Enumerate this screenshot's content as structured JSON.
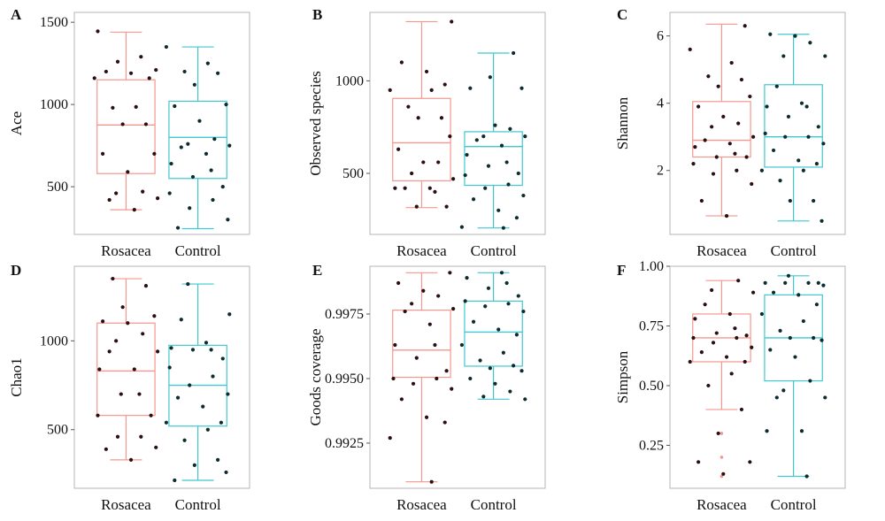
{
  "figure": {
    "background": "#ffffff"
  },
  "colors": {
    "rosacea": "#f4978e",
    "control": "#3fc8cf",
    "point": "#2b0f12",
    "point_control": "#0b2d30",
    "frame": "#b5b5b5"
  },
  "chart_data": [
    {
      "type": "box",
      "panel": "A",
      "ylabel": "Ace",
      "categories": [
        "Rosacea",
        "Control"
      ],
      "ylim": [
        210,
        1560
      ],
      "yticks": [
        500,
        1000,
        1500
      ],
      "boxes": [
        {
          "name": "Rosacea",
          "min": 360,
          "q1": 580,
          "median": 875,
          "q3": 1150,
          "max": 1440
        },
        {
          "name": "Control",
          "min": 245,
          "q1": 550,
          "median": 800,
          "q3": 1020,
          "max": 1350
        }
      ],
      "points": [
        [
          1445,
          1290,
          1260,
          1210,
          1200,
          1190,
          1160,
          1160,
          985,
          980,
          880,
          880,
          700,
          700,
          590,
          470,
          460,
          430,
          420,
          360
        ],
        [
          1350,
          1250,
          1200,
          1190,
          1120,
          1000,
          990,
          900,
          790,
          760,
          750,
          740,
          700,
          640,
          600,
          560,
          500,
          460,
          420,
          370,
          300,
          250
        ]
      ]
    },
    {
      "type": "box",
      "panel": "B",
      "ylabel": "Observed species",
      "categories": [
        "Rosacea",
        "Control"
      ],
      "ylim": [
        170,
        1370
      ],
      "yticks": [
        500,
        1000
      ],
      "boxes": [
        {
          "name": "Rosacea",
          "min": 315,
          "q1": 460,
          "median": 665,
          "q3": 905,
          "max": 1320
        },
        {
          "name": "Control",
          "min": 205,
          "q1": 435,
          "median": 645,
          "q3": 725,
          "max": 1150
        }
      ],
      "points": [
        [
          1320,
          1100,
          1050,
          980,
          950,
          950,
          860,
          800,
          800,
          700,
          630,
          560,
          560,
          500,
          470,
          420,
          420,
          420,
          400,
          320,
          320
        ],
        [
          1150,
          1020,
          960,
          960,
          760,
          740,
          700,
          700,
          680,
          650,
          600,
          560,
          540,
          500,
          490,
          440,
          420,
          380,
          360,
          300,
          260,
          210,
          205
        ]
      ]
    },
    {
      "type": "box",
      "panel": "C",
      "ylabel": "Shannon",
      "categories": [
        "Rosacea",
        "Control"
      ],
      "ylim": [
        0.1,
        6.7
      ],
      "yticks": [
        2,
        4,
        6
      ],
      "boxes": [
        {
          "name": "Rosacea",
          "min": 0.65,
          "q1": 2.4,
          "median": 2.9,
          "q3": 4.05,
          "max": 6.35
        },
        {
          "name": "Control",
          "min": 0.5,
          "q1": 2.1,
          "median": 3.0,
          "q3": 4.55,
          "max": 6.05
        }
      ],
      "points": [
        [
          6.3,
          5.6,
          5.2,
          4.8,
          4.7,
          4.5,
          4.2,
          3.9,
          3.6,
          3.4,
          3.3,
          3.0,
          2.9,
          2.8,
          2.7,
          2.5,
          2.4,
          2.4,
          2.2,
          2.0,
          1.9,
          1.6,
          1.1,
          0.65
        ],
        [
          6.05,
          6.0,
          5.8,
          5.4,
          5.4,
          4.5,
          4.0,
          3.9,
          3.9,
          3.6,
          3.3,
          3.1,
          3.0,
          3.0,
          2.8,
          2.6,
          2.3,
          2.2,
          2.0,
          2.0,
          1.7,
          1.1,
          1.1,
          0.5
        ]
      ]
    },
    {
      "type": "box",
      "panel": "D",
      "ylabel": "Chao1",
      "categories": [
        "Rosacea",
        "Control"
      ],
      "ylim": [
        170,
        1420
      ],
      "yticks": [
        500,
        1000
      ],
      "boxes": [
        {
          "name": "Rosacea",
          "min": 330,
          "q1": 580,
          "median": 830,
          "q3": 1100,
          "max": 1350
        },
        {
          "name": "Control",
          "min": 215,
          "q1": 520,
          "median": 750,
          "q3": 975,
          "max": 1320
        }
      ],
      "points": [
        [
          1350,
          1310,
          1190,
          1140,
          1110,
          1100,
          1040,
          1000,
          940,
          940,
          840,
          840,
          700,
          700,
          580,
          580,
          460,
          460,
          400,
          390,
          330
        ],
        [
          1320,
          1150,
          1120,
          990,
          960,
          950,
          950,
          900,
          850,
          800,
          750,
          700,
          680,
          630,
          540,
          540,
          500,
          440,
          330,
          300,
          260,
          215
        ]
      ]
    },
    {
      "type": "box",
      "panel": "E",
      "ylabel": "Goods coverage",
      "categories": [
        "Rosacea",
        "Control"
      ],
      "ylim": [
        0.99075,
        0.99935
      ],
      "yticks": [
        0.9925,
        0.995,
        0.9975
      ],
      "ytick_labels": [
        "0.9925",
        "0.9950",
        "0.9975"
      ],
      "boxes": [
        {
          "name": "Rosacea",
          "min": 0.991,
          "q1": 0.99505,
          "median": 0.9961,
          "q3": 0.99765,
          "max": 0.9991
        },
        {
          "name": "Control",
          "min": 0.9942,
          "q1": 0.99548,
          "median": 0.9968,
          "q3": 0.998,
          "max": 0.9991
        }
      ],
      "points": [
        [
          0.9991,
          0.9987,
          0.9984,
          0.9982,
          0.9979,
          0.9977,
          0.9976,
          0.9971,
          0.9963,
          0.9963,
          0.9958,
          0.9953,
          0.995,
          0.995,
          0.9948,
          0.9946,
          0.9942,
          0.9935,
          0.9933,
          0.9927,
          0.991
        ],
        [
          0.9991,
          0.9989,
          0.9987,
          0.9985,
          0.9982,
          0.998,
          0.9979,
          0.9978,
          0.9976,
          0.9972,
          0.9969,
          0.9967,
          0.9963,
          0.996,
          0.9957,
          0.9955,
          0.9954,
          0.9953,
          0.995,
          0.9948,
          0.9945,
          0.9943,
          0.9942
        ]
      ]
    },
    {
      "type": "box",
      "panel": "F",
      "ylabel": "Simpson",
      "categories": [
        "Rosacea",
        "Control"
      ],
      "ylim": [
        0.07,
        1.0
      ],
      "yticks": [
        0.25,
        0.5,
        0.75,
        1.0
      ],
      "ytick_labels": [
        "0.25",
        "0.50",
        "0.75",
        "1.00"
      ],
      "boxes": [
        {
          "name": "Rosacea",
          "min": 0.4,
          "q1": 0.6,
          "median": 0.7,
          "q3": 0.8,
          "max": 0.94
        },
        {
          "name": "Control",
          "min": 0.12,
          "q1": 0.52,
          "median": 0.7,
          "q3": 0.88,
          "max": 0.96
        }
      ],
      "outliers": [
        [
          0.3,
          0.2,
          0.12
        ],
        []
      ],
      "points": [
        [
          0.94,
          0.9,
          0.89,
          0.84,
          0.8,
          0.78,
          0.74,
          0.72,
          0.71,
          0.7,
          0.7,
          0.68,
          0.66,
          0.64,
          0.62,
          0.6,
          0.6,
          0.55,
          0.5,
          0.4,
          0.3,
          0.18,
          0.18,
          0.13
        ],
        [
          0.96,
          0.93,
          0.93,
          0.93,
          0.93,
          0.92,
          0.89,
          0.88,
          0.84,
          0.8,
          0.77,
          0.73,
          0.7,
          0.7,
          0.69,
          0.65,
          0.62,
          0.52,
          0.48,
          0.45,
          0.45,
          0.31,
          0.31,
          0.12
        ]
      ]
    }
  ]
}
